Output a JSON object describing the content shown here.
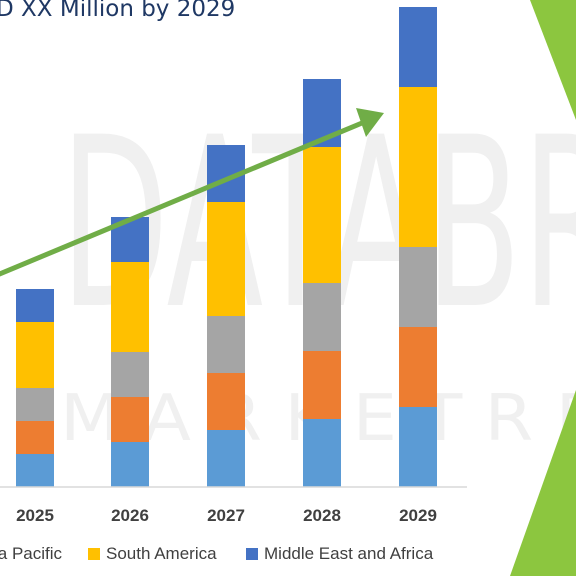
{
  "title": "D XX Million by 2029",
  "colors": {
    "background": "#ffffff",
    "arrow": "#70ad47",
    "stripe": "#8cc63f",
    "axis": "#d9d9d9",
    "title": "#1f3864"
  },
  "watermark": {
    "line1": "DATABR",
    "line2": "M A R K E T R E"
  },
  "chart_data": {
    "type": "bar",
    "stacked": true,
    "title": "D XX Million by 2029",
    "categories": [
      "2025",
      "2026",
      "2027",
      "2028",
      "2029"
    ],
    "series": [
      {
        "name": "",
        "color": "#5b9bd5",
        "values": [
          33,
          45,
          57,
          68,
          80
        ]
      },
      {
        "name": "",
        "color": "#ed7d31",
        "values": [
          33,
          45,
          57,
          68,
          80
        ]
      },
      {
        "name": "",
        "color": "#a5a5a5",
        "values": [
          33,
          45,
          57,
          68,
          80
        ]
      },
      {
        "name": "ia Pacific",
        "color": "#ffc000",
        "values": [
          33,
          45,
          57,
          68,
          80
        ]
      },
      {
        "name": "South America",
        "color": "#ffc000",
        "values": [
          33,
          45,
          57,
          68,
          80
        ]
      },
      {
        "name": "Middle East and Africa",
        "color": "#4472c4",
        "values": [
          33,
          45,
          57,
          68,
          80
        ]
      }
    ],
    "legend": [
      {
        "label": "ia Pacific",
        "color": "#a5a5a5"
      },
      {
        "label": "South America",
        "color": "#ffc000"
      },
      {
        "label": "Middle East and Africa",
        "color": "#4472c4"
      }
    ],
    "legend_position": "bottom",
    "grid": false
  }
}
